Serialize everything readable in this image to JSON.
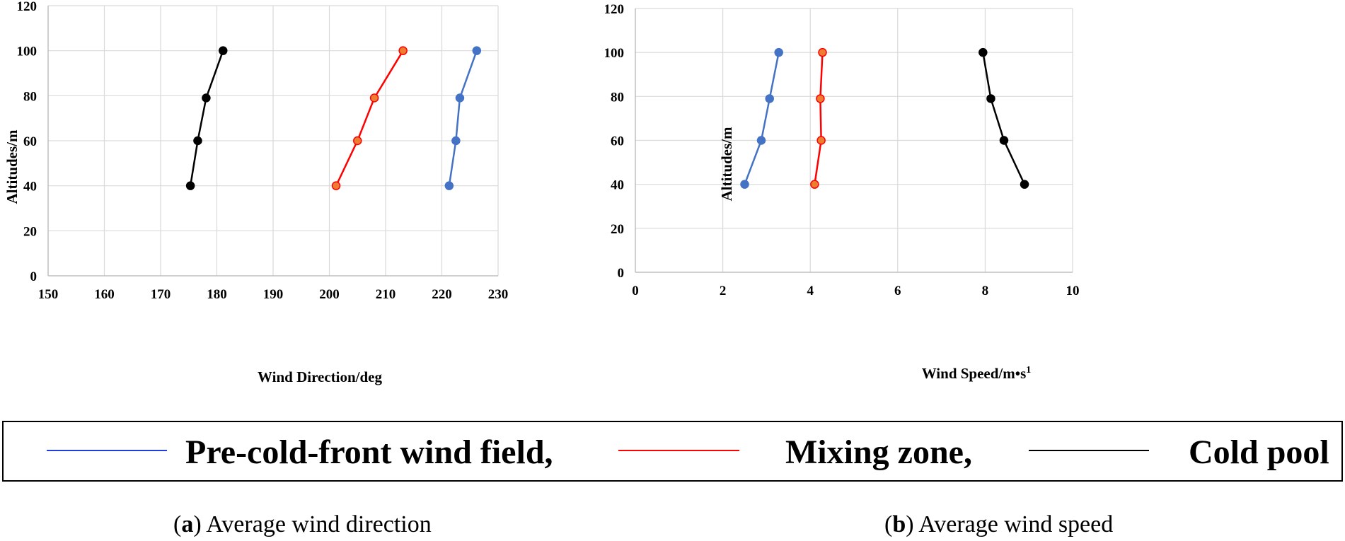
{
  "chart_data": [
    {
      "id": "a",
      "type": "line",
      "xlabel": "Wind Direction/deg",
      "ylabel": "Altitudes/m",
      "xlim": [
        150,
        230
      ],
      "ylim": [
        0,
        120
      ],
      "xticks": [
        150,
        160,
        170,
        180,
        190,
        200,
        210,
        220,
        230
      ],
      "yticks": [
        0,
        20,
        40,
        60,
        80,
        100,
        120
      ],
      "grid": true,
      "series": [
        {
          "name": "Pre-cold-front wind field",
          "points": [
            [
              221.3,
              40
            ],
            [
              222.5,
              60
            ],
            [
              223.2,
              79
            ],
            [
              226.2,
              100
            ]
          ]
        },
        {
          "name": "Mixing zone",
          "points": [
            [
              201.2,
              40
            ],
            [
              205.0,
              60
            ],
            [
              208.0,
              79
            ],
            [
              213.1,
              100
            ]
          ]
        },
        {
          "name": "Cold pool",
          "points": [
            [
              175.3,
              40
            ],
            [
              176.6,
              60
            ],
            [
              178.1,
              79
            ],
            [
              181.1,
              100
            ]
          ]
        }
      ]
    },
    {
      "id": "b",
      "type": "line",
      "xlabel_main": "Wind Speed/m•s",
      "xlabel_sup": "1",
      "ylabel": "Altitudes/m",
      "xlim": [
        0,
        10
      ],
      "ylim": [
        0,
        120
      ],
      "xticks": [
        0,
        2,
        4,
        6,
        8,
        10
      ],
      "yticks": [
        0,
        20,
        40,
        60,
        80,
        100,
        120
      ],
      "grid": true,
      "series": [
        {
          "name": "Pre-cold-front wind field",
          "points": [
            [
              2.5,
              40
            ],
            [
              2.88,
              60
            ],
            [
              3.07,
              79
            ],
            [
              3.28,
              100
            ]
          ]
        },
        {
          "name": "Mixing zone",
          "points": [
            [
              4.1,
              40
            ],
            [
              4.25,
              60
            ],
            [
              4.23,
              79
            ],
            [
              4.28,
              100
            ]
          ]
        },
        {
          "name": "Cold pool",
          "points": [
            [
              8.9,
              40
            ],
            [
              8.43,
              60
            ],
            [
              8.13,
              79
            ],
            [
              7.95,
              100
            ]
          ]
        }
      ]
    }
  ],
  "legend": {
    "items": [
      {
        "label": "Pre-cold-front wind field,",
        "color": "#1f3fd8"
      },
      {
        "label": "Mixing zone,",
        "color": "#ff0000"
      },
      {
        "label": "Cold pool",
        "color": "#000000"
      }
    ]
  },
  "series_styles": {
    "Pre-cold-front wind field": {
      "line": "#4472c4",
      "marker": "#4472c4",
      "marker_edge": "#4472c4"
    },
    "Mixing zone": {
      "line": "#ff0000",
      "marker": "#ed7d31",
      "marker_edge": "#ff0000"
    },
    "Cold pool": {
      "line": "#000000",
      "marker": "#000000",
      "marker_edge": "#000000"
    }
  },
  "captions": {
    "a": {
      "letter": "a",
      "text": " Average wind direction"
    },
    "b": {
      "letter": "b",
      "text": " Average wind speed"
    }
  }
}
